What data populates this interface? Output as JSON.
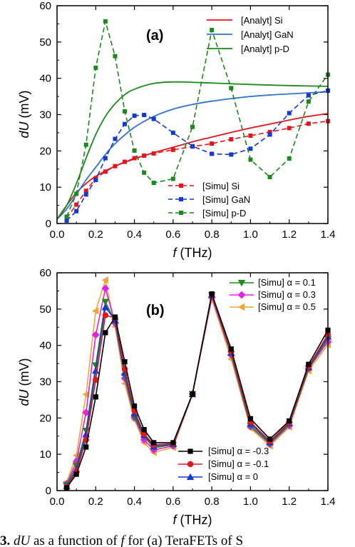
{
  "caption": "3. dU as a function of f for (a) TeraFETs of S",
  "chart_data": [
    {
      "type": "line",
      "panel_label": "(a)",
      "xlabel": "f (THz)",
      "ylabel": "dU (mV)",
      "xlim": [
        0,
        1.4
      ],
      "ylim": [
        0,
        60
      ],
      "xticks": [
        "0.0",
        "0.2",
        "0.4",
        "0.6",
        "0.8",
        "1.0",
        "1.2",
        "1.4"
      ],
      "yticks": [
        "0",
        "10",
        "20",
        "30",
        "40",
        "50",
        "60"
      ],
      "legend_top": "top-right",
      "legend_bottom": "bottom-right",
      "series": [
        {
          "name": "[Analyt] Si",
          "color": "#e8141b",
          "style": "solid",
          "marker": "none",
          "x": [
            0,
            0.05,
            0.1,
            0.15,
            0.2,
            0.3,
            0.4,
            0.5,
            0.6,
            0.7,
            0.8,
            0.9,
            1.0,
            1.1,
            1.2,
            1.3,
            1.4
          ],
          "y": [
            1.2,
            5.0,
            8.5,
            11.0,
            13.0,
            15.8,
            17.8,
            19.5,
            21.0,
            22.5,
            23.8,
            25.1,
            26.3,
            27.4,
            28.5,
            29.5,
            30.3
          ]
        },
        {
          "name": "[Analyt] GaN",
          "color": "#2e75d4",
          "style": "solid",
          "marker": "none",
          "x": [
            0,
            0.05,
            0.1,
            0.15,
            0.2,
            0.25,
            0.3,
            0.4,
            0.5,
            0.6,
            0.7,
            0.8,
            0.9,
            1.0,
            1.1,
            1.2,
            1.3,
            1.4
          ],
          "y": [
            1.2,
            4.0,
            8.0,
            12.0,
            15.5,
            19.0,
            22.0,
            26.5,
            29.5,
            31.5,
            32.8,
            33.7,
            34.4,
            35.0,
            35.4,
            35.7,
            36.0,
            36.3
          ]
        },
        {
          "name": "[Analyt] p-D",
          "color": "#1a8a1a",
          "style": "solid",
          "marker": "none",
          "x": [
            0,
            0.05,
            0.1,
            0.15,
            0.2,
            0.25,
            0.3,
            0.35,
            0.4,
            0.5,
            0.6,
            0.7,
            0.8,
            0.9,
            1.0,
            1.2,
            1.4
          ],
          "y": [
            1.2,
            5.0,
            11.0,
            18.0,
            24.5,
            29.5,
            33.0,
            35.5,
            37.0,
            38.6,
            39.0,
            38.9,
            38.7,
            38.5,
            38.3,
            38.0,
            37.8
          ]
        },
        {
          "name": "[Simu] Si",
          "color": "#e8141b",
          "style": "dashed",
          "marker": "square",
          "x": [
            0.05,
            0.1,
            0.15,
            0.2,
            0.25,
            0.3,
            0.35,
            0.4,
            0.45,
            0.5,
            0.6,
            0.7,
            0.8,
            0.9,
            1.0,
            1.1,
            1.2,
            1.3,
            1.4
          ],
          "y": [
            1.5,
            5.2,
            9.0,
            12.5,
            14.3,
            15.8,
            17.0,
            18.0,
            18.7,
            19.3,
            20.3,
            21.2,
            22.0,
            23.2,
            24.2,
            25.2,
            26.3,
            27.5,
            28.2
          ]
        },
        {
          "name": "[Simu] GaN",
          "color": "#1438d6",
          "style": "dashed",
          "marker": "square",
          "x": [
            0.05,
            0.1,
            0.15,
            0.2,
            0.25,
            0.3,
            0.35,
            0.4,
            0.45,
            0.5,
            0.6,
            0.7,
            0.8,
            0.9,
            1.0,
            1.1,
            1.2,
            1.3,
            1.4
          ],
          "y": [
            0.8,
            3.4,
            8.0,
            12.0,
            18.0,
            23.3,
            27.4,
            29.7,
            29.9,
            28.8,
            25.0,
            21.3,
            19.2,
            19.0,
            20.6,
            24.5,
            30.4,
            35.3,
            36.6
          ]
        },
        {
          "name": "[Simu] p-D",
          "color": "#1a8a1a",
          "style": "dashed",
          "marker": "square",
          "x": [
            0.05,
            0.1,
            0.15,
            0.2,
            0.25,
            0.3,
            0.35,
            0.4,
            0.45,
            0.5,
            0.6,
            0.7,
            0.8,
            0.9,
            1.0,
            1.1,
            1.2,
            1.3,
            1.4
          ],
          "y": [
            1.9,
            8.2,
            21.7,
            42.9,
            55.7,
            46.1,
            30.9,
            20.1,
            14.0,
            11.2,
            12.3,
            26.6,
            53.3,
            37.3,
            17.6,
            12.8,
            17.9,
            33.6,
            41.0
          ]
        }
      ]
    },
    {
      "type": "line",
      "panel_label": "(b)",
      "xlabel": "f (THz)",
      "ylabel": "dU (mV)",
      "xlim": [
        0,
        1.4
      ],
      "ylim": [
        0,
        60
      ],
      "xticks": [
        "0.0",
        "0.2",
        "0.4",
        "0.6",
        "0.8",
        "1.0",
        "1.2",
        "1.4"
      ],
      "yticks": [
        "0",
        "10",
        "20",
        "30",
        "40",
        "50",
        "60"
      ],
      "legend_top": "top-right",
      "legend_bottom": "bottom-right",
      "x": [
        0.05,
        0.1,
        0.15,
        0.2,
        0.25,
        0.3,
        0.35,
        0.4,
        0.45,
        0.5,
        0.6,
        0.7,
        0.8,
        0.9,
        1.0,
        1.1,
        1.2,
        1.3,
        1.4
      ],
      "series": [
        {
          "name": "[Simu] α = 0.1",
          "color": "#1a8a1a",
          "marker": "triangle-down",
          "y": [
            1.6,
            6.8,
            16.5,
            34.5,
            52.0,
            46.5,
            31.5,
            20.3,
            15.0,
            11.8,
            12.6,
            26.6,
            53.8,
            37.6,
            17.8,
            12.9,
            18.2,
            33.6,
            41.8
          ]
        },
        {
          "name": "[Simu] α = 0.3",
          "color": "#e61fe6",
          "marker": "diamond",
          "y": [
            1.9,
            8.0,
            21.5,
            42.9,
            55.7,
            46.1,
            30.9,
            20.1,
            14.0,
            11.2,
            12.3,
            26.6,
            53.3,
            37.3,
            17.6,
            12.8,
            17.9,
            33.6,
            41.0
          ]
        },
        {
          "name": "[Simu] α = 0.5",
          "color": "#f0a535",
          "marker": "triangle-left",
          "y": [
            2.4,
            9.7,
            26.5,
            49.5,
            58.0,
            45.2,
            29.5,
            19.5,
            13.2,
            10.5,
            11.9,
            26.5,
            52.8,
            36.2,
            17.2,
            12.3,
            17.5,
            33.0,
            40.2
          ]
        },
        {
          "name": "[Simu] α = -0.3",
          "color": "#000000",
          "marker": "square",
          "y": [
            0.8,
            4.5,
            12.0,
            25.8,
            43.5,
            47.8,
            35.5,
            23.3,
            16.8,
            13.2,
            13.2,
            26.6,
            54.2,
            39.0,
            19.8,
            14.2,
            19.2,
            34.8,
            44.2
          ]
        },
        {
          "name": "[Simu] α = -0.1",
          "color": "#e8141b",
          "marker": "circle",
          "y": [
            1.0,
            5.2,
            14.0,
            30.5,
            48.3,
            47.6,
            33.5,
            22.0,
            15.6,
            12.6,
            12.9,
            26.6,
            54.0,
            38.3,
            18.9,
            13.6,
            18.8,
            34.2,
            43.0
          ]
        },
        {
          "name": "[Simu] α = 0",
          "color": "#1438d6",
          "marker": "triangle-up",
          "y": [
            1.2,
            5.8,
            15.5,
            33.0,
            50.5,
            47.0,
            32.5,
            21.2,
            15.3,
            12.2,
            12.8,
            26.6,
            53.9,
            38.0,
            18.4,
            13.3,
            18.6,
            33.9,
            42.4
          ]
        }
      ]
    }
  ]
}
